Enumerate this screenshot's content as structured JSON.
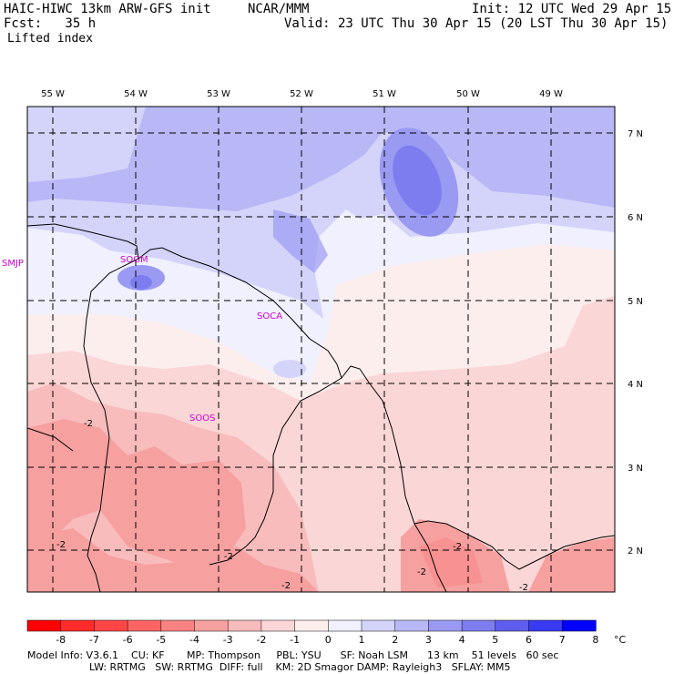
{
  "header": {
    "model_line": "HAIC-HIWC 13km ARW-GFS init",
    "org": "NCAR/MMM",
    "init": "Init: 12 UTC Wed 29 Apr 15",
    "fcst": "Fcst:   35 h",
    "valid": "Valid: 23 UTC Thu 30 Apr 15 (20 LST Thu 30 Apr 15)",
    "field": "Lifted index"
  },
  "map": {
    "lon_labels": [
      "55 W",
      "54 W",
      "53 W",
      "52 W",
      "51 W",
      "50 W",
      "49 W"
    ],
    "lat_labels": [
      "7 N",
      "6 N",
      "5 N",
      "4 N",
      "3 N",
      "2 N"
    ],
    "stations": [
      "SMJP",
      "SOGM",
      "SOCA",
      "SOOS"
    ],
    "contour_labels": [
      "-2",
      "-2",
      "-2",
      "-2",
      "-2",
      "-2",
      "-2"
    ]
  },
  "colorbar": {
    "labels": [
      "-8",
      "-7",
      "-6",
      "-5",
      "-4",
      "-3",
      "-2",
      "-1",
      "0",
      "1",
      "2",
      "3",
      "4",
      "5",
      "6",
      "7",
      "8"
    ],
    "unit": "°C",
    "colors": [
      "#ff0000",
      "#ff2a2a",
      "#ff4646",
      "#fc6464",
      "#f98282",
      "#f7a0a0",
      "#f8bcbc",
      "#fbd6d6",
      "#fdeeee",
      "#f0f0fe",
      "#d4d4fb",
      "#b8b8f7",
      "#9a9af3",
      "#7d7df0",
      "#5e5eee",
      "#3a3af2",
      "#0000ff"
    ]
  },
  "footer": {
    "line1": "Model Info: V3.6.1    CU: KF       MP: Thompson     PBL: YSU      SF: Noah LSM      13 km    51 levels   60 sec",
    "line2": "LW: RRTMG   SW: RRTMG  DIFF: full    KM: 2D Smagor DAMP: Rayleigh3   SFLAY: MM5"
  }
}
